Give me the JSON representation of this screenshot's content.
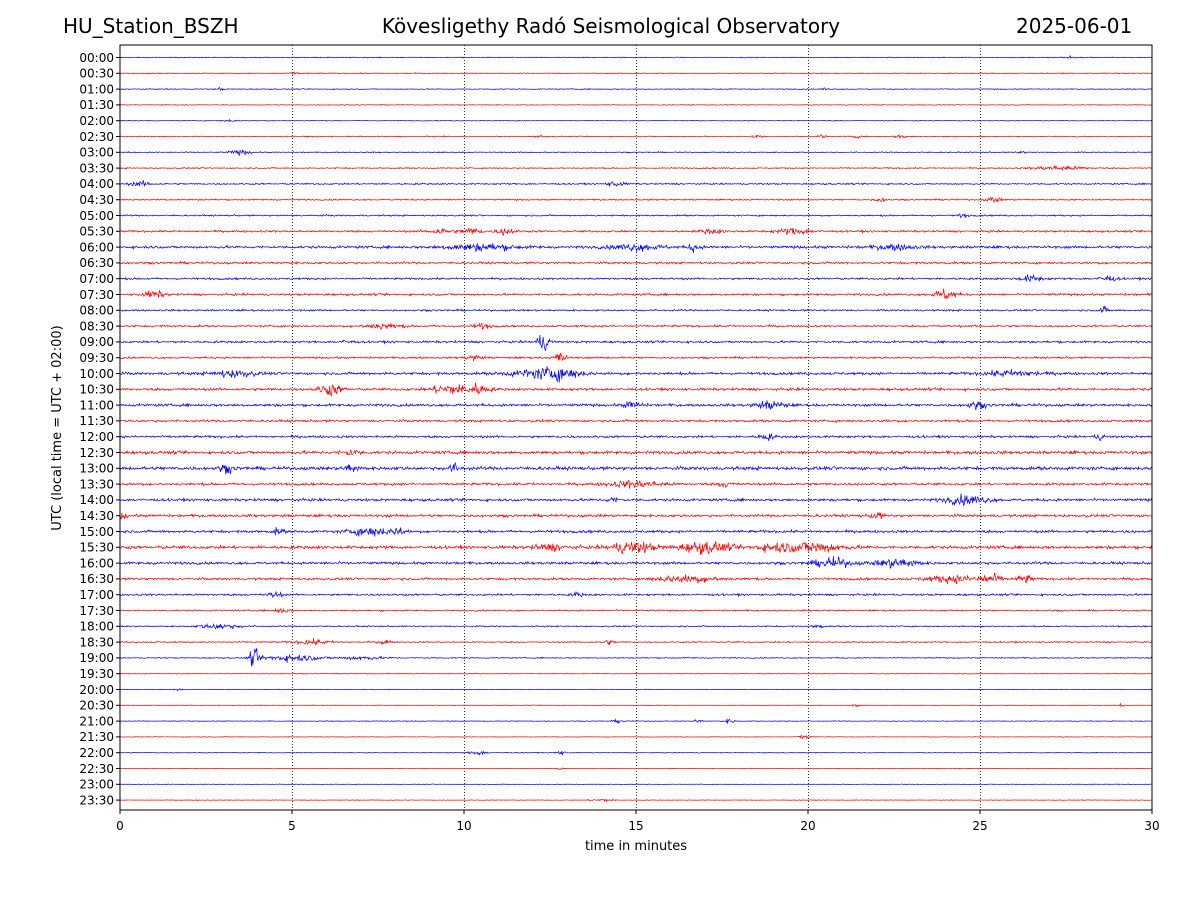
{
  "header": {
    "station": "HU_Station_BSZH",
    "observatory": "Kövesligethy Radó Seismological Observatory",
    "date": "2025-06-01"
  },
  "chart_data": {
    "type": "line",
    "title": "Kövesligethy Radó Seismological Observatory",
    "xlabel": "time in minutes",
    "ylabel": "UTC (local time = UTC + 02:00)",
    "xlim": [
      0,
      30
    ],
    "x_ticks": [
      0,
      5,
      10,
      15,
      20,
      25,
      30
    ],
    "grid": "vertical dotted lines at x ticks",
    "colors": {
      "even_rows": "#0000ff",
      "odd_rows": "#ff0000"
    },
    "rows": [
      {
        "label": "00:00",
        "amplitude": 0.06,
        "events": [
          {
            "t": 27.6,
            "amp": 0.2,
            "dur": 0.2
          }
        ]
      },
      {
        "label": "00:30",
        "amplitude": 0.06,
        "events": [
          {
            "t": 5.1,
            "amp": 0.15,
            "dur": 0.3
          }
        ]
      },
      {
        "label": "01:00",
        "amplitude": 0.06,
        "events": [
          {
            "t": 2.9,
            "amp": 0.2,
            "dur": 0.2
          },
          {
            "t": 20.5,
            "amp": 0.2,
            "dur": 0.2
          }
        ]
      },
      {
        "label": "01:30",
        "amplitude": 0.05,
        "events": []
      },
      {
        "label": "02:00",
        "amplitude": 0.05,
        "events": [
          {
            "t": 3.2,
            "amp": 0.12,
            "dur": 0.5
          }
        ]
      },
      {
        "label": "02:30",
        "amplitude": 0.07,
        "events": [
          {
            "t": 12.2,
            "amp": 0.2,
            "dur": 0.2
          },
          {
            "t": 18.5,
            "amp": 0.25,
            "dur": 0.3
          },
          {
            "t": 20.4,
            "amp": 0.25,
            "dur": 0.2
          },
          {
            "t": 21.4,
            "amp": 0.2,
            "dur": 0.2
          },
          {
            "t": 22.7,
            "amp": 0.3,
            "dur": 0.3
          }
        ]
      },
      {
        "label": "03:00",
        "amplitude": 0.07,
        "events": [
          {
            "t": 3.5,
            "amp": 0.3,
            "dur": 0.6
          },
          {
            "t": 26.2,
            "amp": 0.2,
            "dur": 0.2
          }
        ]
      },
      {
        "label": "03:30",
        "amplitude": 0.08,
        "events": [
          {
            "t": 27.3,
            "amp": 0.3,
            "dur": 1.5
          }
        ]
      },
      {
        "label": "04:00",
        "amplitude": 0.1,
        "events": [
          {
            "t": 0.6,
            "amp": 0.3,
            "dur": 0.6
          },
          {
            "t": 14.4,
            "amp": 0.3,
            "dur": 0.5
          }
        ]
      },
      {
        "label": "04:30",
        "amplitude": 0.09,
        "events": [
          {
            "t": 22.1,
            "amp": 0.3,
            "dur": 0.3
          },
          {
            "t": 25.4,
            "amp": 0.35,
            "dur": 0.4
          }
        ]
      },
      {
        "label": "05:00",
        "amplitude": 0.1,
        "events": [
          {
            "t": 24.5,
            "amp": 0.25,
            "dur": 0.3
          }
        ]
      },
      {
        "label": "05:30",
        "amplitude": 0.13,
        "events": [
          {
            "t": 9.3,
            "amp": 0.4,
            "dur": 0.6
          },
          {
            "t": 10.2,
            "amp": 0.45,
            "dur": 0.6
          },
          {
            "t": 11.2,
            "amp": 0.45,
            "dur": 0.5
          },
          {
            "t": 17.2,
            "amp": 0.35,
            "dur": 0.6
          },
          {
            "t": 19.6,
            "amp": 0.4,
            "dur": 1.0
          }
        ]
      },
      {
        "label": "06:00",
        "amplitude": 0.17,
        "events": [
          {
            "t": 10.5,
            "amp": 0.45,
            "dur": 2.0
          },
          {
            "t": 15.0,
            "amp": 0.4,
            "dur": 1.5
          },
          {
            "t": 16.7,
            "amp": 0.6,
            "dur": 0.3
          },
          {
            "t": 22.5,
            "amp": 0.35,
            "dur": 1.2
          }
        ]
      },
      {
        "label": "06:30",
        "amplitude": 0.14,
        "events": []
      },
      {
        "label": "07:00",
        "amplitude": 0.13,
        "events": [
          {
            "t": 26.5,
            "amp": 0.45,
            "dur": 0.6
          },
          {
            "t": 28.7,
            "amp": 0.4,
            "dur": 0.5
          }
        ]
      },
      {
        "label": "07:30",
        "amplitude": 0.14,
        "events": [
          {
            "t": 1.0,
            "amp": 0.45,
            "dur": 0.6
          },
          {
            "t": 24.0,
            "amp": 0.7,
            "dur": 0.6
          }
        ]
      },
      {
        "label": "08:00",
        "amplitude": 0.12,
        "events": [
          {
            "t": 28.6,
            "amp": 0.4,
            "dur": 0.3
          }
        ]
      },
      {
        "label": "08:30",
        "amplitude": 0.13,
        "events": [
          {
            "t": 7.6,
            "amp": 0.4,
            "dur": 1.0
          },
          {
            "t": 10.5,
            "amp": 0.35,
            "dur": 0.5
          }
        ]
      },
      {
        "label": "09:00",
        "amplitude": 0.14,
        "events": [
          {
            "t": 12.3,
            "amp": 1.1,
            "dur": 0.4
          },
          {
            "t": 6.6,
            "amp": 0.3,
            "dur": 0.3
          }
        ]
      },
      {
        "label": "09:30",
        "amplitude": 0.12,
        "events": [
          {
            "t": 12.8,
            "amp": 0.9,
            "dur": 0.3
          },
          {
            "t": 10.3,
            "amp": 0.3,
            "dur": 0.5
          }
        ]
      },
      {
        "label": "10:00",
        "amplitude": 0.17,
        "events": [
          {
            "t": 3.3,
            "amp": 0.45,
            "dur": 1.2
          },
          {
            "t": 12.8,
            "amp": 0.7,
            "dur": 1.2
          },
          {
            "t": 12.0,
            "amp": 0.45,
            "dur": 1.5
          },
          {
            "t": 26.0,
            "amp": 0.4,
            "dur": 1.5
          }
        ]
      },
      {
        "label": "10:30",
        "amplitude": 0.17,
        "events": [
          {
            "t": 6.1,
            "amp": 0.8,
            "dur": 0.6
          },
          {
            "t": 9.5,
            "amp": 0.7,
            "dur": 0.8
          },
          {
            "t": 10.3,
            "amp": 0.7,
            "dur": 0.8
          }
        ]
      },
      {
        "label": "11:00",
        "amplitude": 0.17,
        "events": [
          {
            "t": 14.9,
            "amp": 0.45,
            "dur": 0.5
          },
          {
            "t": 18.9,
            "amp": 0.55,
            "dur": 0.8
          },
          {
            "t": 24.9,
            "amp": 0.45,
            "dur": 0.5
          }
        ]
      },
      {
        "label": "11:30",
        "amplitude": 0.15,
        "events": []
      },
      {
        "label": "12:00",
        "amplitude": 0.15,
        "events": [
          {
            "t": 18.8,
            "amp": 0.45,
            "dur": 0.4
          },
          {
            "t": 28.5,
            "amp": 0.35,
            "dur": 0.3
          }
        ]
      },
      {
        "label": "12:30",
        "amplitude": 0.2,
        "events": [
          {
            "t": 6.7,
            "amp": 0.4,
            "dur": 0.5
          }
        ]
      },
      {
        "label": "13:00",
        "amplitude": 0.22,
        "events": [
          {
            "t": 3.1,
            "amp": 0.5,
            "dur": 0.4
          },
          {
            "t": 6.7,
            "amp": 0.55,
            "dur": 0.4
          },
          {
            "t": 9.7,
            "amp": 0.5,
            "dur": 0.4
          }
        ]
      },
      {
        "label": "13:30",
        "amplitude": 0.16,
        "events": [
          {
            "t": 15.0,
            "amp": 0.45,
            "dur": 1.5
          },
          {
            "t": 17.6,
            "amp": 0.35,
            "dur": 0.4
          }
        ]
      },
      {
        "label": "14:00",
        "amplitude": 0.17,
        "events": [
          {
            "t": 24.6,
            "amp": 0.6,
            "dur": 1.2
          },
          {
            "t": 14.3,
            "amp": 0.35,
            "dur": 0.3
          }
        ]
      },
      {
        "label": "14:30",
        "amplitude": 0.17,
        "events": [
          {
            "t": 22.0,
            "amp": 0.5,
            "dur": 0.3
          },
          {
            "t": 0.1,
            "amp": 0.45,
            "dur": 0.2
          }
        ]
      },
      {
        "label": "15:00",
        "amplitude": 0.17,
        "events": [
          {
            "t": 7.3,
            "amp": 0.55,
            "dur": 1.2
          },
          {
            "t": 8.1,
            "amp": 0.8,
            "dur": 0.2
          },
          {
            "t": 4.6,
            "amp": 0.4,
            "dur": 0.3
          }
        ]
      },
      {
        "label": "15:30",
        "amplitude": 0.2,
        "events": [
          {
            "t": 14.9,
            "amp": 0.8,
            "dur": 1.2
          },
          {
            "t": 17.0,
            "amp": 0.75,
            "dur": 1.4
          },
          {
            "t": 20.2,
            "amp": 0.7,
            "dur": 1.6
          },
          {
            "t": 19.0,
            "amp": 0.5,
            "dur": 1.0
          },
          {
            "t": 12.5,
            "amp": 0.4,
            "dur": 1.0
          }
        ]
      },
      {
        "label": "16:00",
        "amplitude": 0.17,
        "events": [
          {
            "t": 20.7,
            "amp": 0.65,
            "dur": 1.0
          },
          {
            "t": 22.6,
            "amp": 0.6,
            "dur": 1.2
          }
        ]
      },
      {
        "label": "16:30",
        "amplitude": 0.15,
        "events": [
          {
            "t": 16.5,
            "amp": 0.45,
            "dur": 1.8
          },
          {
            "t": 24.2,
            "amp": 0.45,
            "dur": 1.6
          },
          {
            "t": 25.3,
            "amp": 0.6,
            "dur": 0.6
          },
          {
            "t": 26.3,
            "amp": 0.55,
            "dur": 0.4
          }
        ]
      },
      {
        "label": "17:00",
        "amplitude": 0.13,
        "events": [
          {
            "t": 4.5,
            "amp": 0.35,
            "dur": 0.4
          },
          {
            "t": 13.3,
            "amp": 0.3,
            "dur": 0.3
          }
        ]
      },
      {
        "label": "17:30",
        "amplitude": 0.1,
        "events": [
          {
            "t": 4.7,
            "amp": 0.35,
            "dur": 0.4
          }
        ]
      },
      {
        "label": "18:00",
        "amplitude": 0.09,
        "events": [
          {
            "t": 2.9,
            "amp": 0.35,
            "dur": 1.1
          },
          {
            "t": 20.3,
            "amp": 0.3,
            "dur": 0.3
          }
        ]
      },
      {
        "label": "18:30",
        "amplitude": 0.09,
        "events": [
          {
            "t": 5.6,
            "amp": 0.3,
            "dur": 1.0
          },
          {
            "t": 7.7,
            "amp": 0.4,
            "dur": 0.3
          },
          {
            "t": 14.2,
            "amp": 0.3,
            "dur": 0.3
          }
        ]
      },
      {
        "label": "19:00",
        "amplitude": 0.07,
        "events": [
          {
            "t": 3.9,
            "amp": 1.3,
            "dur": 0.25
          },
          {
            "t": 5.0,
            "amp": 0.45,
            "dur": 1.6
          },
          {
            "t": 7.0,
            "amp": 0.25,
            "dur": 1.2
          }
        ]
      },
      {
        "label": "19:30",
        "amplitude": 0.05,
        "events": []
      },
      {
        "label": "20:00",
        "amplitude": 0.04,
        "events": [
          {
            "t": 1.7,
            "amp": 0.2,
            "dur": 0.2
          }
        ]
      },
      {
        "label": "20:30",
        "amplitude": 0.04,
        "events": [
          {
            "t": 21.4,
            "amp": 0.3,
            "dur": 0.2
          },
          {
            "t": 29.1,
            "amp": 0.2,
            "dur": 0.2
          }
        ]
      },
      {
        "label": "21:00",
        "amplitude": 0.05,
        "events": [
          {
            "t": 16.8,
            "amp": 0.35,
            "dur": 0.2
          },
          {
            "t": 17.7,
            "amp": 0.3,
            "dur": 0.3
          },
          {
            "t": 14.5,
            "amp": 0.2,
            "dur": 0.3
          }
        ]
      },
      {
        "label": "21:30",
        "amplitude": 0.04,
        "events": [
          {
            "t": 19.9,
            "amp": 0.3,
            "dur": 0.3
          }
        ]
      },
      {
        "label": "22:00",
        "amplitude": 0.05,
        "events": [
          {
            "t": 10.4,
            "amp": 0.3,
            "dur": 0.5
          },
          {
            "t": 12.8,
            "amp": 0.25,
            "dur": 0.3
          }
        ]
      },
      {
        "label": "22:30",
        "amplitude": 0.04,
        "events": [
          {
            "t": 12.8,
            "amp": 0.2,
            "dur": 0.2
          }
        ]
      },
      {
        "label": "23:00",
        "amplitude": 0.04,
        "events": []
      },
      {
        "label": "23:30",
        "amplitude": 0.04,
        "events": [
          {
            "t": 14.0,
            "amp": 0.2,
            "dur": 0.6
          }
        ]
      }
    ]
  }
}
